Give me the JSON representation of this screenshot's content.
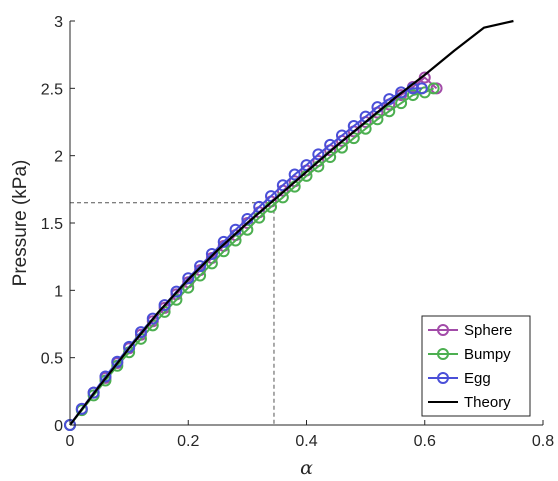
{
  "chart_data": {
    "type": "line",
    "title": "",
    "xlabel": "α",
    "ylabel": "Pressure (kPa)",
    "xlim": [
      0,
      0.8
    ],
    "ylim": [
      0,
      3
    ],
    "x_tick_labels": [
      "0",
      "0.2",
      "0.4",
      "0.6",
      "0.8"
    ],
    "y_tick_labels": [
      "0",
      "0.5",
      "1",
      "1.5",
      "2",
      "2.5",
      "3"
    ],
    "grid": false,
    "legend_position": "bottom-right",
    "series": [
      {
        "name": "Sphere",
        "color": "#A24BA8",
        "marker": "circle",
        "x": [
          0.0,
          0.02,
          0.04,
          0.06,
          0.08,
          0.1,
          0.12,
          0.14,
          0.16,
          0.18,
          0.2,
          0.22,
          0.24,
          0.26,
          0.28,
          0.3,
          0.32,
          0.34,
          0.36,
          0.38,
          0.4,
          0.42,
          0.44,
          0.46,
          0.48,
          0.5,
          0.52,
          0.54,
          0.56,
          0.58,
          0.6,
          0.62
        ],
        "y": [
          0.0,
          0.12,
          0.24,
          0.35,
          0.46,
          0.57,
          0.67,
          0.77,
          0.87,
          0.97,
          1.06,
          1.15,
          1.24,
          1.33,
          1.41,
          1.5,
          1.58,
          1.66,
          1.74,
          1.81,
          1.89,
          1.96,
          2.04,
          2.11,
          2.18,
          2.25,
          2.32,
          2.38,
          2.45,
          2.51,
          2.58,
          2.5
        ]
      },
      {
        "name": "Bumpy",
        "color": "#4CAF50",
        "marker": "circle",
        "x": [
          0.0,
          0.02,
          0.04,
          0.06,
          0.08,
          0.1,
          0.12,
          0.14,
          0.16,
          0.18,
          0.2,
          0.22,
          0.24,
          0.26,
          0.28,
          0.3,
          0.32,
          0.34,
          0.36,
          0.38,
          0.4,
          0.42,
          0.44,
          0.46,
          0.48,
          0.5,
          0.52,
          0.54,
          0.56,
          0.58,
          0.6,
          0.615
        ],
        "y": [
          0.0,
          0.11,
          0.22,
          0.33,
          0.44,
          0.54,
          0.64,
          0.74,
          0.84,
          0.93,
          1.02,
          1.11,
          1.2,
          1.29,
          1.37,
          1.45,
          1.54,
          1.62,
          1.69,
          1.77,
          1.85,
          1.92,
          1.99,
          2.06,
          2.13,
          2.2,
          2.27,
          2.33,
          2.39,
          2.45,
          2.47,
          2.5
        ]
      },
      {
        "name": "Egg",
        "color": "#4A4FD8",
        "marker": "circle",
        "x": [
          0.0,
          0.02,
          0.04,
          0.06,
          0.08,
          0.1,
          0.12,
          0.14,
          0.16,
          0.18,
          0.2,
          0.22,
          0.24,
          0.26,
          0.28,
          0.3,
          0.32,
          0.34,
          0.36,
          0.38,
          0.4,
          0.42,
          0.44,
          0.46,
          0.48,
          0.5,
          0.52,
          0.54,
          0.56,
          0.58,
          0.595
        ],
        "y": [
          0.0,
          0.12,
          0.24,
          0.36,
          0.47,
          0.58,
          0.69,
          0.79,
          0.89,
          0.99,
          1.09,
          1.18,
          1.27,
          1.36,
          1.45,
          1.53,
          1.62,
          1.7,
          1.78,
          1.86,
          1.93,
          2.01,
          2.08,
          2.15,
          2.22,
          2.29,
          2.36,
          2.42,
          2.47,
          2.5,
          2.5
        ]
      },
      {
        "name": "Theory",
        "color": "#000000",
        "marker": "none",
        "x": [
          0.0,
          0.05,
          0.1,
          0.15,
          0.2,
          0.25,
          0.3,
          0.35,
          0.4,
          0.45,
          0.5,
          0.55,
          0.6,
          0.65,
          0.7,
          0.75
        ],
        "y": [
          0.0,
          0.29,
          0.57,
          0.84,
          1.08,
          1.3,
          1.5,
          1.69,
          1.88,
          2.07,
          2.25,
          2.43,
          2.6,
          2.78,
          2.95,
          3.0
        ]
      }
    ],
    "reference_point": {
      "x": 0.345,
      "y": 1.65,
      "style": "dashed"
    }
  }
}
